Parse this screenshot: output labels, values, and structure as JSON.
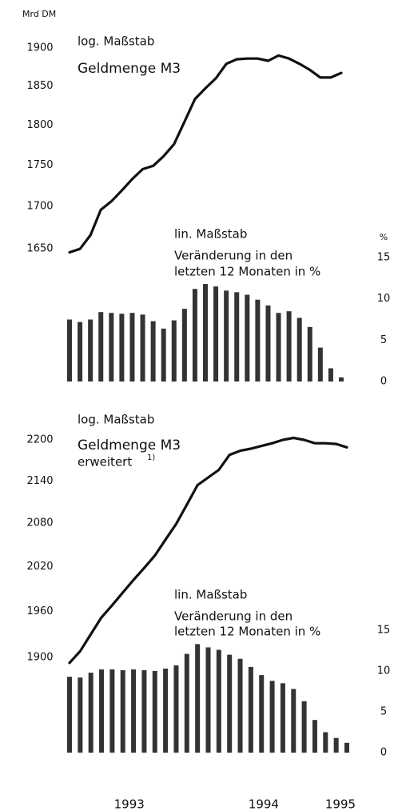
{
  "chart_data": [
    {
      "type": "line",
      "log": true,
      "unit_label": "Mrd DM",
      "y2_unit_label": "%",
      "annotations": [
        "log. Maßstab",
        "Geldmenge M3",
        "lin. Maßstab",
        "Veränderung in den",
        "letzten 12 Monaten in %"
      ],
      "x": [
        0,
        1,
        2,
        3,
        4,
        5,
        6,
        7,
        8,
        9,
        10,
        11,
        12,
        13,
        14,
        15,
        16,
        17,
        18,
        19,
        20,
        21,
        22,
        23,
        24,
        25,
        26
      ],
      "xlim": [
        0,
        26
      ],
      "ylim": [
        1640,
        1900
      ],
      "yticks": [
        1650,
        1700,
        1750,
        1800,
        1850,
        1900
      ],
      "y2lim": [
        0,
        15
      ],
      "y2ticks": [
        0,
        5,
        10,
        15
      ],
      "series": [
        {
          "type": "line",
          "color": "#111111",
          "values": [
            1646,
            1650,
            1666,
            1696,
            1706,
            1719,
            1733,
            1745,
            1749,
            1761,
            1776,
            1804,
            1833,
            1847,
            1860,
            1879,
            1885,
            1886,
            1886,
            1883,
            1890,
            1886,
            1879,
            1871,
            1861,
            1861,
            1867
          ]
        },
        {
          "type": "bar",
          "axis": "y2",
          "color": "#333333",
          "values": [
            7.5,
            7.2,
            7.5,
            8.4,
            8.3,
            8.2,
            8.3,
            8.1,
            7.3,
            6.4,
            7.4,
            8.8,
            11.2,
            11.8,
            11.5,
            11.0,
            10.8,
            10.5,
            9.9,
            9.2,
            8.3,
            8.5,
            7.7,
            6.6,
            4.1,
            1.6,
            0.5
          ]
        }
      ]
    },
    {
      "type": "line",
      "log": true,
      "annotations": [
        "log. Maßstab",
        "Geldmenge M3",
        "erweitert",
        "1)",
        "lin. Maßstab",
        "Veränderung in den",
        "letzten 12 Monaten in %"
      ],
      "x": [
        0,
        1,
        2,
        3,
        4,
        5,
        6,
        7,
        8,
        9,
        10,
        11,
        12,
        13,
        14,
        15,
        16,
        17,
        18,
        19,
        20,
        21,
        22,
        23,
        24,
        25,
        26
      ],
      "xlim": [
        0,
        26
      ],
      "xticks": [
        {
          "value": 5.6,
          "label": "1993"
        },
        {
          "value": 18.2,
          "label": "1994"
        },
        {
          "value": 25.4,
          "label": "1995"
        }
      ],
      "ylim": [
        1880,
        2210
      ],
      "yticks": [
        1900,
        1960,
        2020,
        2080,
        2140,
        2200
      ],
      "y2lim": [
        0,
        15
      ],
      "y2ticks": [
        0,
        5,
        10,
        15
      ],
      "series": [
        {
          "type": "line",
          "color": "#111111",
          "values": [
            1893,
            1908,
            1930,
            1952,
            1968,
            1985,
            2002,
            2018,
            2035,
            2057,
            2079,
            2106,
            2134,
            2145,
            2156,
            2178,
            2184,
            2187,
            2191,
            2195,
            2200,
            2203,
            2200,
            2195,
            2195,
            2194,
            2189
          ]
        },
        {
          "type": "bar",
          "axis": "y2",
          "color": "#333333",
          "values": [
            9.3,
            9.2,
            9.8,
            10.2,
            10.2,
            10.1,
            10.2,
            10.1,
            10.0,
            10.3,
            10.7,
            12.1,
            13.3,
            12.9,
            12.6,
            12.0,
            11.5,
            10.5,
            9.5,
            8.8,
            8.5,
            7.8,
            6.3,
            4.0,
            2.5,
            1.8,
            1.2
          ]
        }
      ]
    }
  ]
}
